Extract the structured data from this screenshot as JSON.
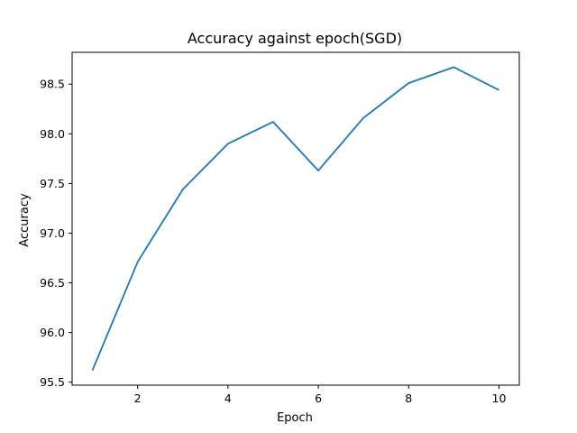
{
  "chart_data": {
    "type": "line",
    "title": "Accuracy against epoch(SGD)",
    "xlabel": "Epoch",
    "ylabel": "Accuracy",
    "x": [
      1,
      2,
      3,
      4,
      5,
      6,
      7,
      8,
      9,
      10
    ],
    "series": [
      {
        "values": [
          95.62,
          96.71,
          97.44,
          97.9,
          98.12,
          97.63,
          98.16,
          98.51,
          98.67,
          98.44
        ],
        "color": "#1f77b4"
      }
    ],
    "xlim": [
      0.55,
      10.45
    ],
    "ylim": [
      95.47,
      98.82
    ],
    "xticks": [
      2,
      4,
      6,
      8,
      10
    ],
    "xtick_labels": [
      "2",
      "4",
      "6",
      "8",
      "10"
    ],
    "yticks": [
      95.5,
      96.0,
      96.5,
      97.0,
      97.5,
      98.0,
      98.5
    ],
    "ytick_labels": [
      "95.5",
      "96.0",
      "96.5",
      "97.0",
      "97.5",
      "98.0",
      "98.5"
    ],
    "grid": false,
    "legend": false
  }
}
